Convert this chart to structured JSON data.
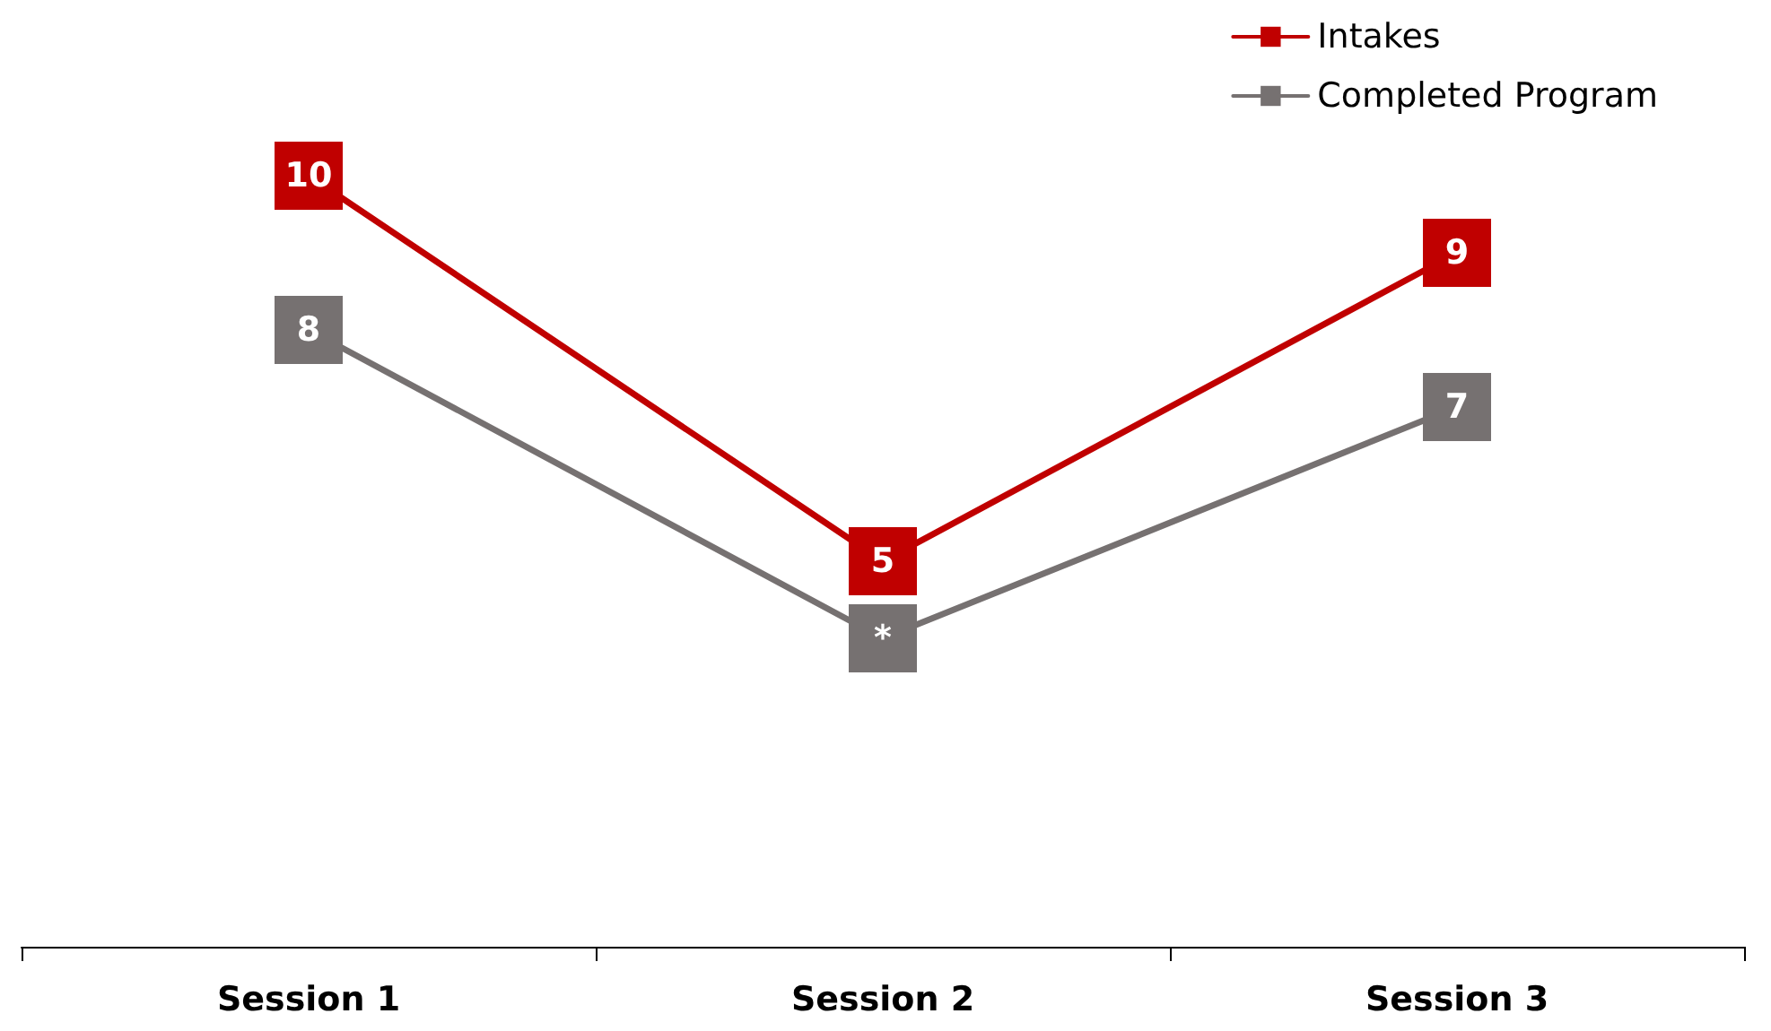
{
  "chart_data": {
    "type": "line",
    "categories": [
      "Session 1",
      "Session 2",
      "Session 3"
    ],
    "series": [
      {
        "name": "Intakes",
        "color": "#c00000",
        "values": [
          10,
          5,
          9
        ],
        "value_labels": [
          "10",
          "5",
          "9"
        ]
      },
      {
        "name": "Completed Program",
        "color": "#767171",
        "values": [
          8,
          4,
          7
        ],
        "value_labels": [
          "8",
          "*",
          "7"
        ]
      }
    ],
    "tick_labels": "x",
    "legend": "top right",
    "marker": "square",
    "line_style": "solid",
    "grid": false
  }
}
